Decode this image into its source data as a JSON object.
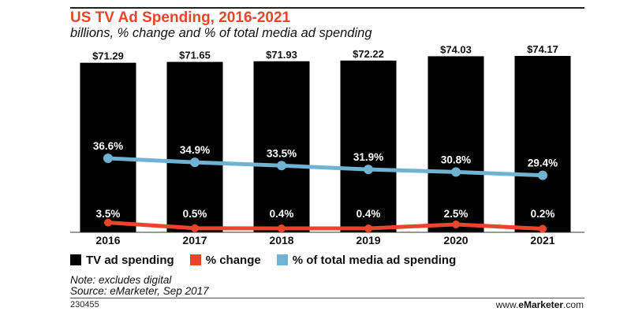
{
  "title": "US TV Ad Spending, 2016-2021",
  "subtitle": "billions, % change and % of total media ad spending",
  "colors": {
    "title": "#e8452b",
    "bars": "#000000",
    "pct_change": "#e8452b",
    "pct_total": "#6fb2d1"
  },
  "chart_data": {
    "type": "bar",
    "categories": [
      "2016",
      "2017",
      "2018",
      "2019",
      "2020",
      "2021"
    ],
    "series": [
      {
        "name": "TV ad spending",
        "type": "bar",
        "values": [
          71.29,
          71.65,
          71.93,
          72.22,
          74.03,
          74.17
        ],
        "labels": [
          "$71.29",
          "$71.65",
          "$71.93",
          "$72.22",
          "$74.03",
          "$74.17"
        ]
      },
      {
        "name": "% change",
        "type": "line",
        "values": [
          3.5,
          0.5,
          0.4,
          0.4,
          2.5,
          0.2
        ],
        "labels": [
          "3.5%",
          "0.5%",
          "0.4%",
          "0.4%",
          "2.5%",
          "0.2%"
        ]
      },
      {
        "name": "% of total media ad spending",
        "type": "line",
        "values": [
          36.6,
          34.9,
          33.5,
          31.9,
          30.8,
          29.4
        ],
        "labels": [
          "36.6%",
          "34.9%",
          "33.5%",
          "31.9%",
          "30.8%",
          "29.4%"
        ]
      }
    ],
    "legend_position": "bottom-left",
    "grid": false
  },
  "footer": {
    "note": "Note: excludes digital",
    "source": "Source: eMarketer, Sep 2017",
    "chart_id": "230455",
    "site_prefix": "www.",
    "site_brand": "eMarketer",
    "site_suffix": ".com"
  }
}
